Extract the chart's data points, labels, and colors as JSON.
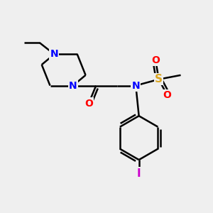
{
  "bg_color": "#efefef",
  "atom_colors": {
    "N": "#0000FF",
    "O": "#FF0000",
    "S": "#DAA520",
    "I": "#CC00CC",
    "C": "#000000"
  },
  "bond_color": "#000000",
  "bond_width": 1.8,
  "figsize": [
    3.0,
    3.0
  ],
  "dpi": 100,
  "xlim": [
    0,
    10
  ],
  "ylim": [
    0,
    10
  ]
}
